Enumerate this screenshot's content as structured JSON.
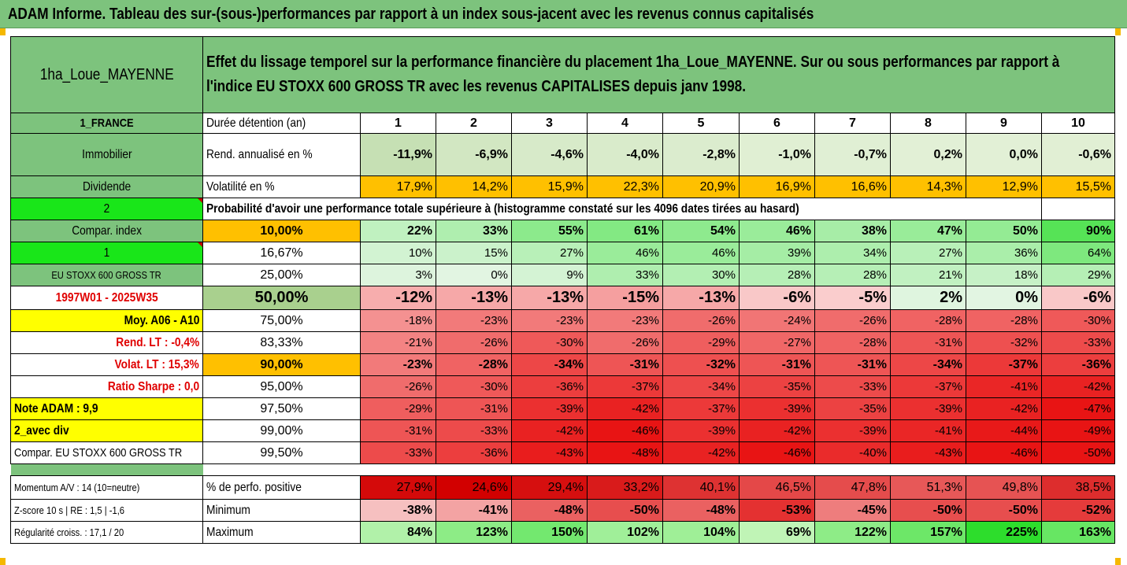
{
  "title": "ADAM Informe. Tableau des sur-(sous-)performances par rapport à un index sous-jacent avec les revenus connus capitalisés",
  "header": {
    "asset_name": "1ha_Loue_MAYENNE",
    "description_line1": "Effet du lissage temporel sur la performance financière du placement 1ha_Loue_MAYENNE. Sur ou sous performances par rapport à",
    "description_line2": "l'indice EU STOXX 600 GROSS TR avec les revenus CAPITALISES depuis janv 1998."
  },
  "left_labels": {
    "country": "1_FRANCE",
    "category": "Immobilier",
    "revenue_type": "Dividende",
    "rank": "2",
    "compar_index": "Compar. index",
    "index_rank": "1",
    "index_name": "EU STOXX 600 GROSS TR",
    "period": "1997W01 - 2025W35",
    "moy": "Moy. A06 - A10",
    "rend_lt": "Rend. LT :   -0,4%",
    "volat_lt": "Volat. LT :   15,3%",
    "sharpe": "Ratio Sharpe :    0,0",
    "note": "Note ADAM : 9,9",
    "variant": "2_avec div",
    "compar_name": "Compar. EU STOXX 600 GROSS TR",
    "momentum": "Momentum A/V : 14 (10=neutre)",
    "zscore": "Z-score 10 s  | RE : 1,5  | -1,6",
    "regularity": "Régularité croiss. : 17,1 / 20"
  },
  "row_labels": {
    "duration": "Durée détention (an)",
    "rend": "Rend. annualisé en %",
    "volat": "Volatilité en %",
    "probability": "Probabilité d'avoir une performance totale supérieure à (histogramme constaté sur les 4096 dates tirées au hasard)",
    "positive": "% de perfo. positive",
    "minimum": "Minimum",
    "maximum": "Maximum"
  },
  "years": [
    "1",
    "2",
    "3",
    "4",
    "5",
    "6",
    "7",
    "8",
    "9",
    "10"
  ],
  "rend": [
    "-11,9%",
    "-6,9%",
    "-4,6%",
    "-4,0%",
    "-2,8%",
    "-1,0%",
    "-0,7%",
    "0,2%",
    "0,0%",
    "-0,6%"
  ],
  "volat": [
    "17,9%",
    "14,2%",
    "15,9%",
    "22,3%",
    "20,9%",
    "16,9%",
    "16,6%",
    "14,3%",
    "12,9%",
    "15,5%"
  ],
  "thresholds": [
    {
      "t": "10,00%",
      "vals": [
        "22%",
        "33%",
        "55%",
        "61%",
        "54%",
        "46%",
        "38%",
        "47%",
        "50%",
        "90%"
      ]
    },
    {
      "t": "16,67%",
      "vals": [
        "10%",
        "15%",
        "27%",
        "46%",
        "46%",
        "39%",
        "34%",
        "27%",
        "36%",
        "64%"
      ]
    },
    {
      "t": "25,00%",
      "vals": [
        "3%",
        "0%",
        "9%",
        "33%",
        "30%",
        "28%",
        "28%",
        "21%",
        "18%",
        "29%"
      ]
    },
    {
      "t": "50,00%",
      "vals": [
        "-12%",
        "-13%",
        "-13%",
        "-15%",
        "-13%",
        "-6%",
        "-5%",
        "2%",
        "0%",
        "-6%"
      ]
    },
    {
      "t": "75,00%",
      "vals": [
        "-18%",
        "-23%",
        "-23%",
        "-23%",
        "-26%",
        "-24%",
        "-26%",
        "-28%",
        "-28%",
        "-30%"
      ]
    },
    {
      "t": "83,33%",
      "vals": [
        "-21%",
        "-26%",
        "-30%",
        "-26%",
        "-29%",
        "-27%",
        "-28%",
        "-31%",
        "-32%",
        "-33%"
      ]
    },
    {
      "t": "90,00%",
      "vals": [
        "-23%",
        "-28%",
        "-34%",
        "-31%",
        "-32%",
        "-31%",
        "-31%",
        "-34%",
        "-37%",
        "-36%"
      ]
    },
    {
      "t": "95,00%",
      "vals": [
        "-26%",
        "-30%",
        "-36%",
        "-37%",
        "-34%",
        "-35%",
        "-33%",
        "-37%",
        "-41%",
        "-42%"
      ]
    },
    {
      "t": "97,50%",
      "vals": [
        "-29%",
        "-31%",
        "-39%",
        "-42%",
        "-37%",
        "-39%",
        "-35%",
        "-39%",
        "-42%",
        "-47%"
      ]
    },
    {
      "t": "99,00%",
      "vals": [
        "-31%",
        "-33%",
        "-42%",
        "-46%",
        "-39%",
        "-42%",
        "-39%",
        "-41%",
        "-44%",
        "-49%"
      ]
    },
    {
      "t": "99,50%",
      "vals": [
        "-33%",
        "-36%",
        "-43%",
        "-48%",
        "-42%",
        "-46%",
        "-40%",
        "-43%",
        "-46%",
        "-50%"
      ]
    }
  ],
  "positive": [
    "27,9%",
    "24,6%",
    "29,4%",
    "33,2%",
    "40,1%",
    "46,5%",
    "47,8%",
    "51,3%",
    "49,8%",
    "38,5%"
  ],
  "minimum": [
    "-38%",
    "-41%",
    "-48%",
    "-50%",
    "-48%",
    "-53%",
    "-45%",
    "-50%",
    "-50%",
    "-52%"
  ],
  "maximum": [
    "84%",
    "123%",
    "150%",
    "102%",
    "104%",
    "69%",
    "122%",
    "157%",
    "225%",
    "163%"
  ],
  "colors": {
    "title_green": "#7dc37d",
    "orange": "#ffc000",
    "yellow": "#ffff00",
    "bright_green": "#19e619",
    "red_text": "#e00000"
  }
}
